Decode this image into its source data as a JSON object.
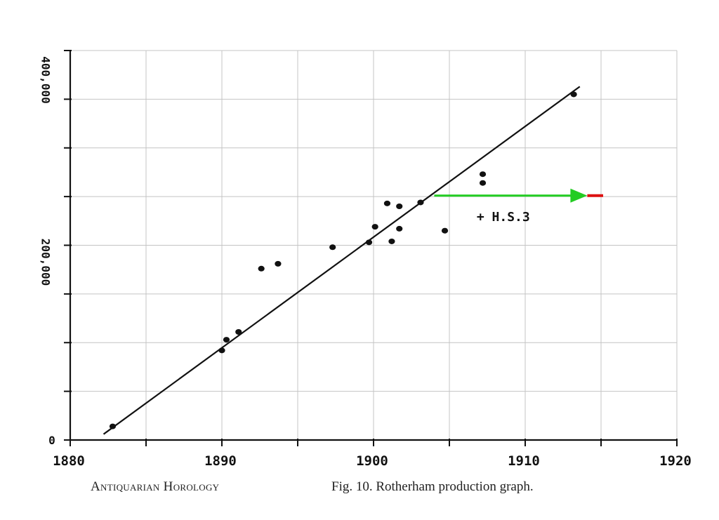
{
  "chart_data": {
    "type": "scatter",
    "title": "",
    "xlabel": "",
    "ylabel": "",
    "xlim": [
      1880,
      1920
    ],
    "ylim": [
      0,
      400000
    ],
    "x_tick_labels": [
      {
        "x": 1880,
        "label": "1880"
      },
      {
        "x": 1890,
        "label": "1890"
      },
      {
        "x": 1900,
        "label": "1900"
      },
      {
        "x": 1910,
        "label": "1910"
      },
      {
        "x": 1920,
        "label": "1920"
      }
    ],
    "x_ticks": [
      1880,
      1885,
      1890,
      1895,
      1900,
      1905,
      1910,
      1915,
      1920
    ],
    "y_tick_labels": [
      {
        "y": 0,
        "label": "0"
      },
      {
        "y": 200000,
        "label": "200,000"
      },
      {
        "y": 400000,
        "label": "400,000"
      }
    ],
    "y_ticks": [
      0,
      50000,
      100000,
      150000,
      200000,
      250000,
      300000,
      350000,
      400000
    ],
    "grid": true,
    "points": [
      {
        "x": 1882.8,
        "y": 14000
      },
      {
        "x": 1890.0,
        "y": 92000
      },
      {
        "x": 1890.3,
        "y": 103000
      },
      {
        "x": 1891.1,
        "y": 111000
      },
      {
        "x": 1892.6,
        "y": 176000
      },
      {
        "x": 1893.7,
        "y": 181000
      },
      {
        "x": 1897.3,
        "y": 198000
      },
      {
        "x": 1899.7,
        "y": 203000
      },
      {
        "x": 1900.1,
        "y": 219000
      },
      {
        "x": 1900.9,
        "y": 243000
      },
      {
        "x": 1901.2,
        "y": 204000
      },
      {
        "x": 1901.7,
        "y": 217000
      },
      {
        "x": 1901.7,
        "y": 240000
      },
      {
        "x": 1903.1,
        "y": 244000
      },
      {
        "x": 1904.7,
        "y": 215000
      },
      {
        "x": 1907.2,
        "y": 264000
      },
      {
        "x": 1907.2,
        "y": 273000
      },
      {
        "x": 1913.2,
        "y": 355000
      }
    ],
    "trend_line": {
      "x": [
        1882.2,
        1913.6
      ],
      "y": [
        6000,
        363000
      ]
    },
    "arrow": {
      "x_start": 1904.0,
      "x_end": 1914.0,
      "y": 251000,
      "color": "#22cc22",
      "tail_color": "#dd1111",
      "tail_x_end": 1915.0
    },
    "annotations": [
      {
        "text": "+ H.S.3",
        "x": 1906.8,
        "y": 225000
      }
    ]
  },
  "captions": {
    "publication": "Antiquarian Horology",
    "figure": "Fig. 10. Rotherham production graph."
  },
  "colors": {
    "grid": "#c4c4c4",
    "ink": "#111111",
    "arrow": "#22cc22",
    "marker": "#dd1111"
  }
}
